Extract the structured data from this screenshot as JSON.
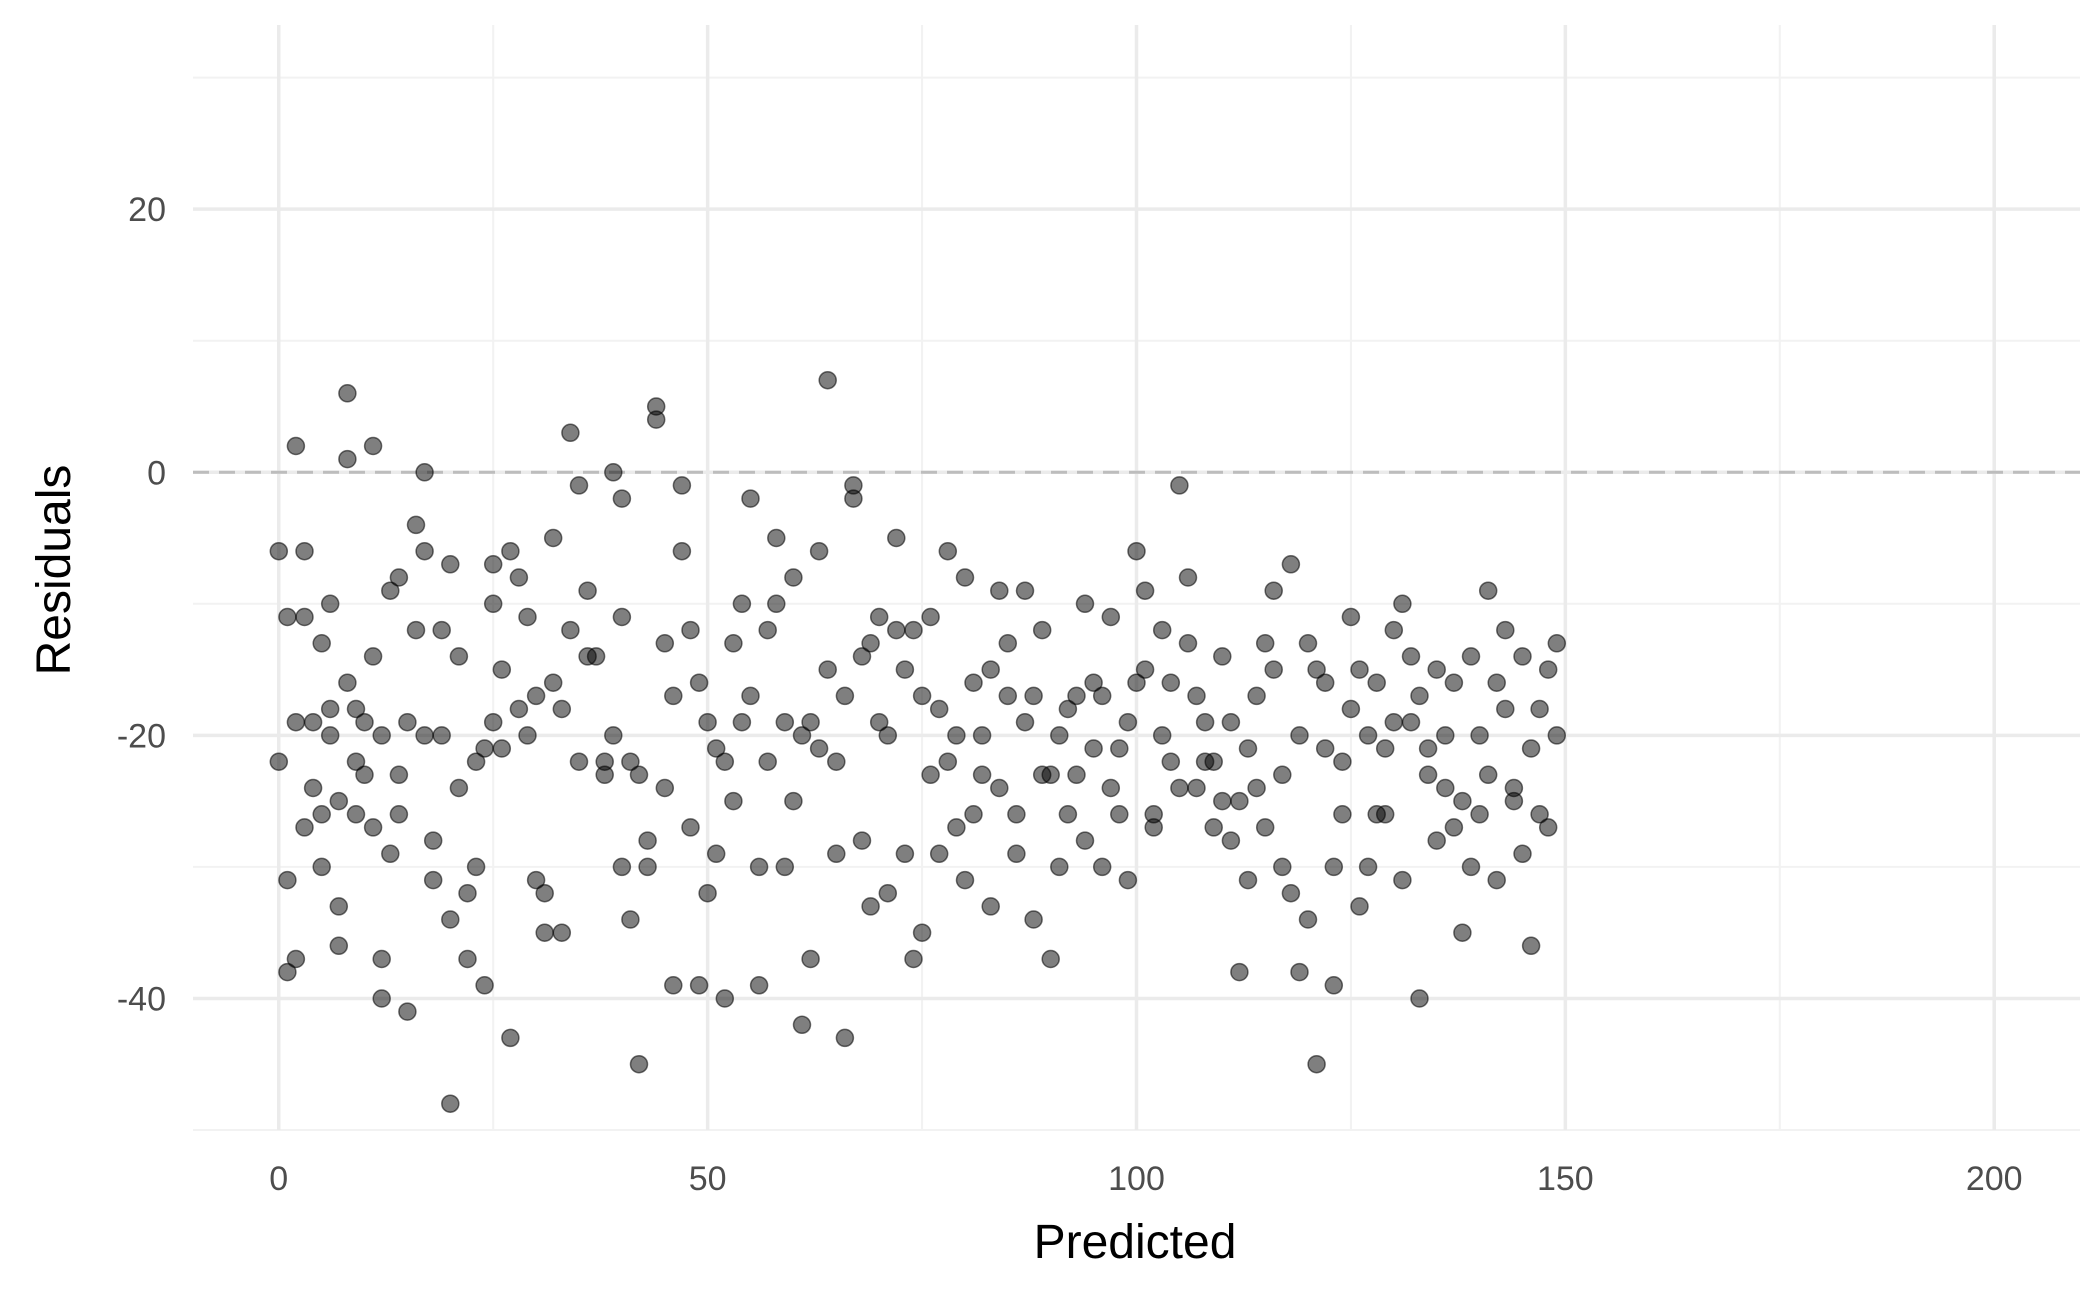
{
  "chart_data": {
    "type": "scatter",
    "title": "",
    "xlabel": "Predicted",
    "ylabel": "Residuals",
    "xlim": [
      -10,
      210
    ],
    "ylim": [
      -50,
      34
    ],
    "x_ticks": [
      0,
      50,
      100,
      150,
      200
    ],
    "y_ticks": [
      -40,
      -20,
      0,
      20
    ],
    "x_tick_labels": [
      "0",
      "50",
      "100",
      "150",
      "200"
    ],
    "y_tick_labels": [
      "-40",
      "-20",
      "0",
      "20"
    ],
    "reference_line": {
      "y": 0,
      "style": "dashed"
    },
    "grid": true,
    "legend": "none",
    "point_color": "#000000",
    "point_alpha": 0.5,
    "series": [
      {
        "points": [
          [
            0,
            -6
          ],
          [
            0,
            -22
          ],
          [
            1,
            -11
          ],
          [
            1,
            -31
          ],
          [
            1,
            -38
          ],
          [
            2,
            2
          ],
          [
            2,
            -19
          ],
          [
            2,
            -37
          ],
          [
            3,
            -6
          ],
          [
            3,
            -11
          ],
          [
            3,
            -27
          ],
          [
            4,
            -24
          ],
          [
            4,
            -19
          ],
          [
            5,
            -13
          ],
          [
            5,
            -26
          ],
          [
            5,
            -30
          ],
          [
            6,
            -10
          ],
          [
            6,
            -18
          ],
          [
            6,
            -20
          ],
          [
            7,
            -25
          ],
          [
            7,
            -33
          ],
          [
            7,
            -36
          ],
          [
            8,
            6
          ],
          [
            8,
            1
          ],
          [
            8,
            -16
          ],
          [
            9,
            -18
          ],
          [
            9,
            -22
          ],
          [
            9,
            -26
          ],
          [
            10,
            -23
          ],
          [
            10,
            -19
          ],
          [
            11,
            -14
          ],
          [
            11,
            2
          ],
          [
            11,
            -27
          ],
          [
            12,
            -37
          ],
          [
            12,
            -20
          ],
          [
            12,
            -40
          ],
          [
            13,
            -9
          ],
          [
            13,
            -29
          ],
          [
            14,
            -8
          ],
          [
            14,
            -26
          ],
          [
            14,
            -23
          ],
          [
            15,
            -41
          ],
          [
            15,
            -19
          ],
          [
            16,
            -4
          ],
          [
            16,
            -12
          ],
          [
            17,
            0
          ],
          [
            17,
            -6
          ],
          [
            17,
            -20
          ],
          [
            18,
            -31
          ],
          [
            18,
            -28
          ],
          [
            19,
            -12
          ],
          [
            19,
            -20
          ],
          [
            20,
            -7
          ],
          [
            20,
            -34
          ],
          [
            20,
            -48
          ],
          [
            21,
            -24
          ],
          [
            21,
            -14
          ],
          [
            22,
            -37
          ],
          [
            22,
            -32
          ],
          [
            23,
            -22
          ],
          [
            23,
            -30
          ],
          [
            24,
            -21
          ],
          [
            24,
            -39
          ],
          [
            25,
            -7
          ],
          [
            25,
            -10
          ],
          [
            25,
            -19
          ],
          [
            26,
            -15
          ],
          [
            26,
            -21
          ],
          [
            27,
            -43
          ],
          [
            27,
            -6
          ],
          [
            28,
            -18
          ],
          [
            28,
            -8
          ],
          [
            29,
            -11
          ],
          [
            29,
            -20
          ],
          [
            30,
            -17
          ],
          [
            30,
            -31
          ],
          [
            31,
            -35
          ],
          [
            31,
            -32
          ],
          [
            32,
            -5
          ],
          [
            32,
            -16
          ],
          [
            33,
            -18
          ],
          [
            33,
            -35
          ],
          [
            34,
            3
          ],
          [
            34,
            -12
          ],
          [
            35,
            -1
          ],
          [
            35,
            -22
          ],
          [
            36,
            -9
          ],
          [
            36,
            -14
          ],
          [
            37,
            -14
          ],
          [
            38,
            -23
          ],
          [
            38,
            -22
          ],
          [
            39,
            0
          ],
          [
            39,
            -20
          ],
          [
            40,
            -2
          ],
          [
            40,
            -11
          ],
          [
            40,
            -30
          ],
          [
            41,
            -22
          ],
          [
            41,
            -34
          ],
          [
            42,
            -45
          ],
          [
            42,
            -23
          ],
          [
            43,
            -28
          ],
          [
            43,
            -30
          ],
          [
            44,
            5
          ],
          [
            44,
            4
          ],
          [
            45,
            -13
          ],
          [
            45,
            -24
          ],
          [
            46,
            -39
          ],
          [
            46,
            -17
          ],
          [
            47,
            -1
          ],
          [
            47,
            -6
          ],
          [
            48,
            -12
          ],
          [
            48,
            -27
          ],
          [
            49,
            -39
          ],
          [
            49,
            -16
          ],
          [
            50,
            -19
          ],
          [
            50,
            -32
          ],
          [
            51,
            -21
          ],
          [
            51,
            -29
          ],
          [
            52,
            -22
          ],
          [
            52,
            -40
          ],
          [
            53,
            -13
          ],
          [
            53,
            -25
          ],
          [
            54,
            -10
          ],
          [
            54,
            -19
          ],
          [
            55,
            -2
          ],
          [
            55,
            -17
          ],
          [
            56,
            -39
          ],
          [
            56,
            -30
          ],
          [
            57,
            -12
          ],
          [
            57,
            -22
          ],
          [
            58,
            -5
          ],
          [
            58,
            -10
          ],
          [
            59,
            -19
          ],
          [
            59,
            -30
          ],
          [
            60,
            -8
          ],
          [
            60,
            -25
          ],
          [
            61,
            -20
          ],
          [
            61,
            -42
          ],
          [
            62,
            -19
          ],
          [
            62,
            -37
          ],
          [
            63,
            -6
          ],
          [
            63,
            -21
          ],
          [
            64,
            7
          ],
          [
            64,
            -15
          ],
          [
            65,
            -22
          ],
          [
            65,
            -29
          ],
          [
            66,
            -17
          ],
          [
            66,
            -43
          ],
          [
            67,
            -1
          ],
          [
            67,
            -2
          ],
          [
            68,
            -14
          ],
          [
            68,
            -28
          ],
          [
            69,
            -33
          ],
          [
            69,
            -13
          ],
          [
            70,
            -11
          ],
          [
            70,
            -19
          ],
          [
            71,
            -20
          ],
          [
            71,
            -32
          ],
          [
            72,
            -5
          ],
          [
            72,
            -12
          ],
          [
            73,
            -15
          ],
          [
            73,
            -29
          ],
          [
            74,
            -12
          ],
          [
            74,
            -37
          ],
          [
            75,
            -17
          ],
          [
            75,
            -35
          ],
          [
            76,
            -11
          ],
          [
            76,
            -23
          ],
          [
            77,
            -18
          ],
          [
            77,
            -29
          ],
          [
            78,
            -6
          ],
          [
            78,
            -22
          ],
          [
            79,
            -27
          ],
          [
            79,
            -20
          ],
          [
            80,
            -8
          ],
          [
            80,
            -31
          ],
          [
            81,
            -16
          ],
          [
            81,
            -26
          ],
          [
            82,
            -20
          ],
          [
            82,
            -23
          ],
          [
            83,
            -15
          ],
          [
            83,
            -33
          ],
          [
            84,
            -24
          ],
          [
            84,
            -9
          ],
          [
            85,
            -13
          ],
          [
            85,
            -17
          ],
          [
            86,
            -26
          ],
          [
            86,
            -29
          ],
          [
            87,
            -9
          ],
          [
            87,
            -19
          ],
          [
            88,
            -17
          ],
          [
            88,
            -34
          ],
          [
            89,
            -12
          ],
          [
            89,
            -23
          ],
          [
            90,
            -23
          ],
          [
            90,
            -37
          ],
          [
            91,
            -20
          ],
          [
            91,
            -30
          ],
          [
            92,
            -26
          ],
          [
            92,
            -18
          ],
          [
            93,
            -17
          ],
          [
            93,
            -23
          ],
          [
            94,
            -28
          ],
          [
            94,
            -10
          ],
          [
            95,
            -16
          ],
          [
            95,
            -21
          ],
          [
            96,
            -30
          ],
          [
            96,
            -17
          ],
          [
            97,
            -11
          ],
          [
            97,
            -24
          ],
          [
            98,
            -21
          ],
          [
            98,
            -26
          ],
          [
            99,
            -19
          ],
          [
            99,
            -31
          ],
          [
            100,
            -16
          ],
          [
            100,
            -6
          ],
          [
            101,
            -15
          ],
          [
            101,
            -9
          ],
          [
            102,
            -26
          ],
          [
            102,
            -27
          ],
          [
            103,
            -12
          ],
          [
            103,
            -20
          ],
          [
            104,
            -16
          ],
          [
            104,
            -22
          ],
          [
            105,
            -1
          ],
          [
            105,
            -24
          ],
          [
            106,
            -8
          ],
          [
            106,
            -13
          ],
          [
            107,
            -17
          ],
          [
            107,
            -24
          ],
          [
            108,
            -22
          ],
          [
            108,
            -19
          ],
          [
            109,
            -22
          ],
          [
            109,
            -27
          ],
          [
            110,
            -14
          ],
          [
            110,
            -25
          ],
          [
            111,
            -19
          ],
          [
            111,
            -28
          ],
          [
            112,
            -25
          ],
          [
            112,
            -38
          ],
          [
            113,
            -21
          ],
          [
            113,
            -31
          ],
          [
            114,
            -17
          ],
          [
            114,
            -24
          ],
          [
            115,
            -13
          ],
          [
            115,
            -27
          ],
          [
            116,
            -9
          ],
          [
            116,
            -15
          ],
          [
            117,
            -23
          ],
          [
            117,
            -30
          ],
          [
            118,
            -32
          ],
          [
            118,
            -7
          ],
          [
            119,
            -20
          ],
          [
            119,
            -38
          ],
          [
            120,
            -13
          ],
          [
            120,
            -34
          ],
          [
            121,
            -15
          ],
          [
            121,
            -45
          ],
          [
            122,
            -16
          ],
          [
            122,
            -21
          ],
          [
            123,
            -30
          ],
          [
            123,
            -39
          ],
          [
            124,
            -22
          ],
          [
            124,
            -26
          ],
          [
            125,
            -11
          ],
          [
            125,
            -18
          ],
          [
            126,
            -15
          ],
          [
            126,
            -33
          ],
          [
            127,
            -20
          ],
          [
            127,
            -30
          ],
          [
            128,
            -16
          ],
          [
            128,
            -26
          ],
          [
            129,
            -26
          ],
          [
            129,
            -21
          ],
          [
            130,
            -19
          ],
          [
            130,
            -12
          ],
          [
            131,
            -10
          ],
          [
            131,
            -31
          ],
          [
            132,
            -14
          ],
          [
            132,
            -19
          ],
          [
            133,
            -17
          ],
          [
            133,
            -40
          ],
          [
            134,
            -23
          ],
          [
            134,
            -21
          ],
          [
            135,
            -28
          ],
          [
            135,
            -15
          ],
          [
            136,
            -20
          ],
          [
            136,
            -24
          ],
          [
            137,
            -27
          ],
          [
            137,
            -16
          ],
          [
            138,
            -25
          ],
          [
            138,
            -35
          ],
          [
            139,
            -30
          ],
          [
            139,
            -14
          ],
          [
            140,
            -20
          ],
          [
            140,
            -26
          ],
          [
            141,
            -9
          ],
          [
            141,
            -23
          ],
          [
            142,
            -16
          ],
          [
            142,
            -31
          ],
          [
            143,
            -12
          ],
          [
            143,
            -18
          ],
          [
            144,
            -25
          ],
          [
            144,
            -24
          ],
          [
            145,
            -14
          ],
          [
            145,
            -29
          ],
          [
            146,
            -21
          ],
          [
            146,
            -36
          ],
          [
            147,
            -26
          ],
          [
            147,
            -18
          ],
          [
            148,
            -15
          ],
          [
            148,
            -27
          ],
          [
            149,
            -13
          ],
          [
            149,
            -20
          ]
        ]
      }
    ]
  }
}
